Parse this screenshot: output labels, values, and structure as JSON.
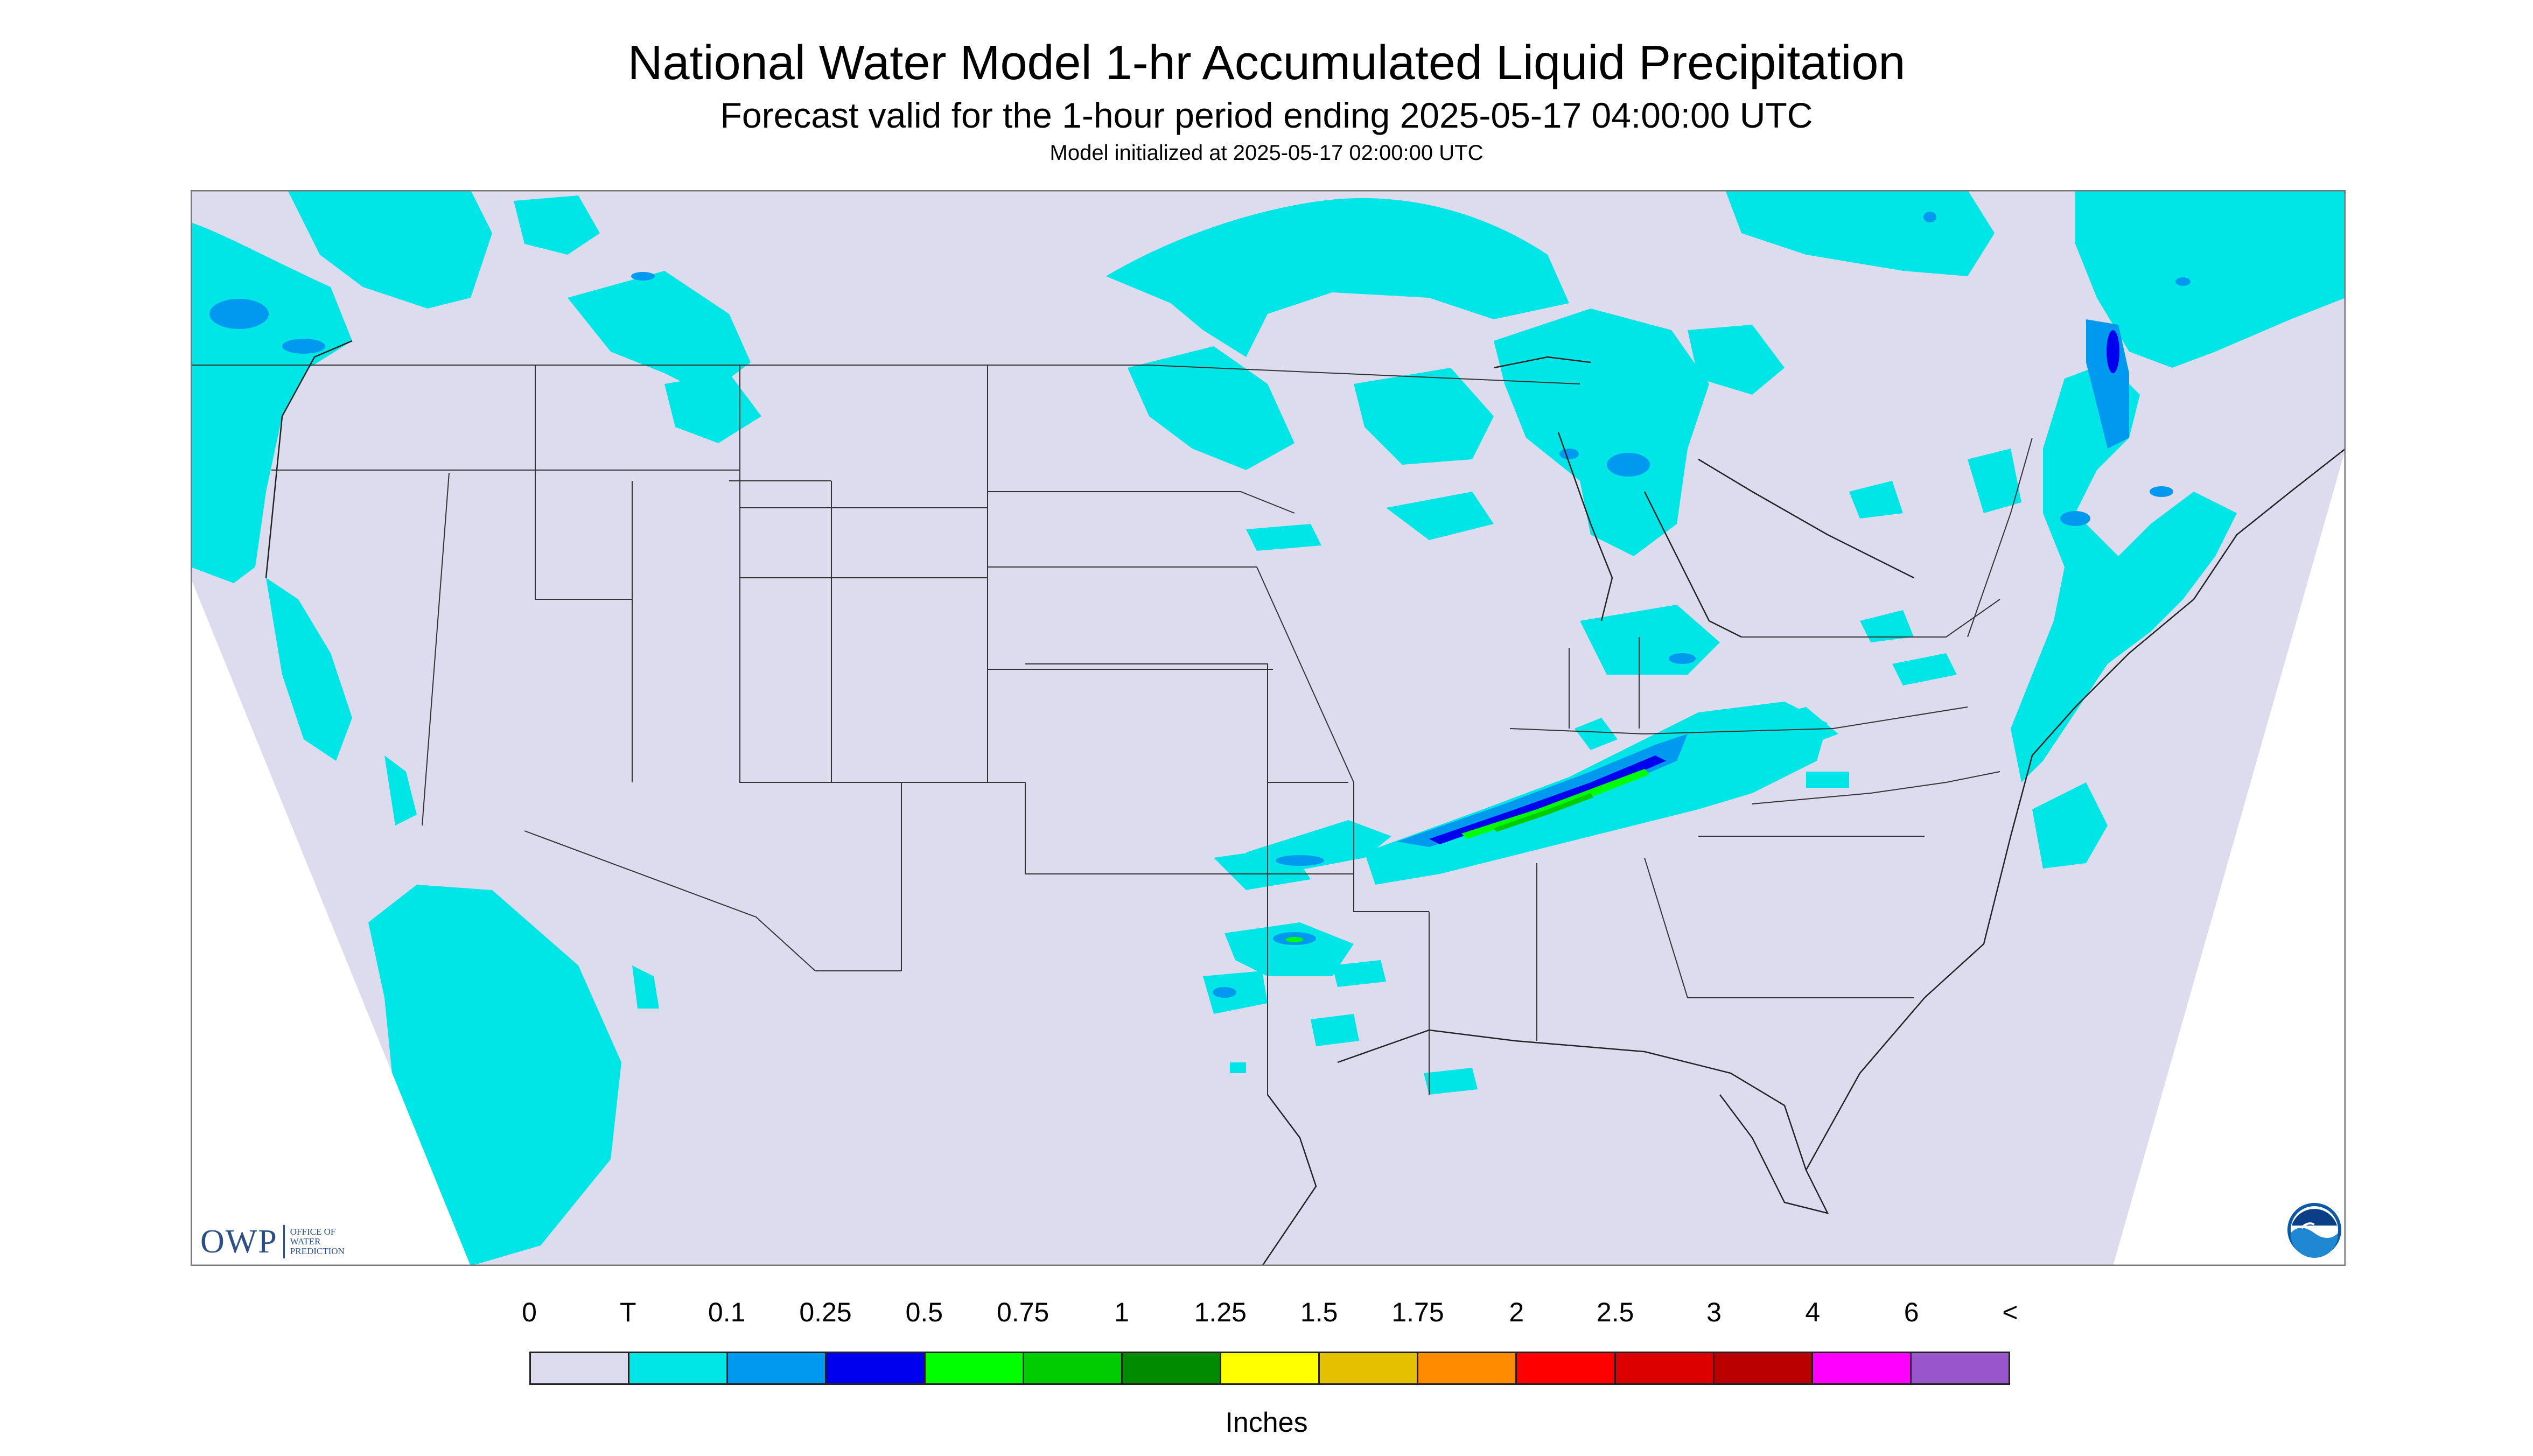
{
  "title": "National Water Model 1-hr Accumulated Liquid Precipitation",
  "subtitle": "Forecast valid for the 1-hour period ending 2025-05-17 04:00:00 UTC",
  "init_text": "Model initialized at 2025-05-17 02:00:00 UTC",
  "legend": {
    "labels": [
      "0",
      "T",
      "0.1",
      "0.25",
      "0.5",
      "0.75",
      "1",
      "1.25",
      "1.5",
      "1.75",
      "2",
      "2.5",
      "3",
      "4",
      "6",
      "<"
    ],
    "colors": [
      "#dcdcee",
      "#00e5e5",
      "#0099f0",
      "#0000ee",
      "#00ff00",
      "#00cc00",
      "#008c00",
      "#ffff00",
      "#e5c000",
      "#ff8c00",
      "#ff0000",
      "#dd0000",
      "#bb0000",
      "#ff00ff",
      "#9955cc"
    ],
    "units": "Inches"
  },
  "logos": {
    "owp_mark": "OWP",
    "owp_text": [
      "OFFICE OF",
      "WATER",
      "PREDICTION"
    ],
    "noaa_text": "NOAA"
  },
  "colors": {
    "background": "#dcdcee",
    "outside_domain": "#ffffff",
    "boundary": "#333333"
  }
}
